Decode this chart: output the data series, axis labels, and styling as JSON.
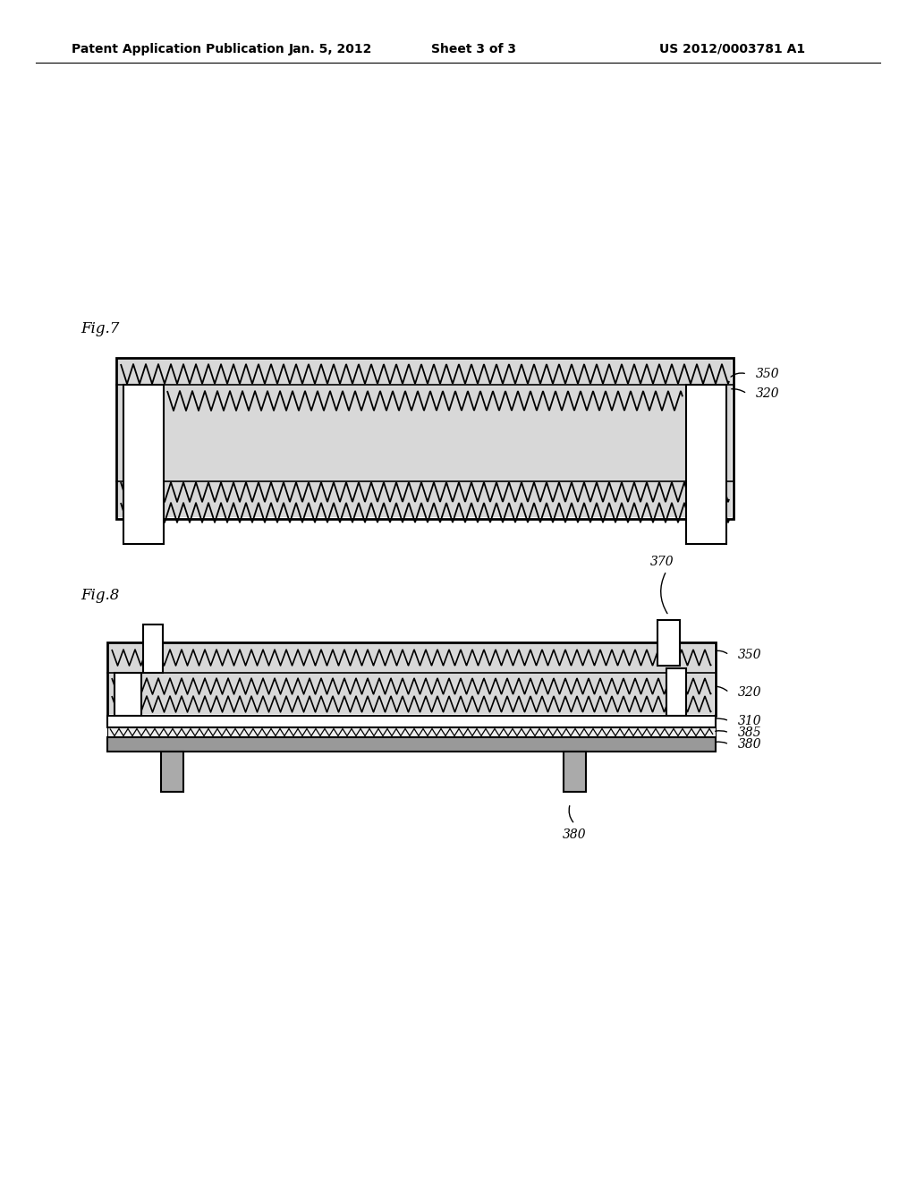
{
  "bg_color": "#ffffff",
  "header_text": "Patent Application Publication",
  "header_date": "Jan. 5, 2012",
  "header_sheet": "Sheet 3 of 3",
  "header_patent": "US 2012/0003781 A1",
  "fig7_label": "Fig.7",
  "fig8_label": "Fig.8",
  "line_color": "#000000",
  "gray_fill": "#d8d8d8",
  "dark_fill": "#333333"
}
